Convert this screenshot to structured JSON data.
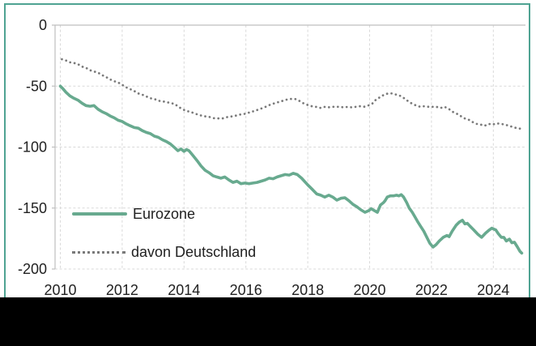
{
  "window": {
    "background_color": "#ffffff",
    "border_color": "#4fa392",
    "redaction_bar_color": "#000000"
  },
  "chart_data": {
    "type": "line",
    "title": "",
    "xlabel": "",
    "ylabel": "",
    "xlim": [
      2009.83,
      2025.05
    ],
    "ylim": [
      -200,
      0
    ],
    "grid": "dashed horizontal and vertical light-gray gridlines, solid zero line at top",
    "legend_position": "inside lower-left",
    "grid_color": "#d9d9d9",
    "axis_color": "#bfbfbf",
    "tick_text_color": "#212121",
    "x_ticks": [
      {
        "label": "2010",
        "value": 2010
      },
      {
        "label": "2012",
        "value": 2012
      },
      {
        "label": "2014",
        "value": 2014
      },
      {
        "label": "2016",
        "value": 2016
      },
      {
        "label": "2018",
        "value": 2018
      },
      {
        "label": "2020",
        "value": 2020
      },
      {
        "label": "2022",
        "value": 2022
      },
      {
        "label": "2024",
        "value": 2024
      }
    ],
    "y_ticks": [
      {
        "label": "0",
        "value": 0
      },
      {
        "label": "-50",
        "value": -50
      },
      {
        "label": "-100",
        "value": -100
      },
      {
        "label": "-150",
        "value": -150
      },
      {
        "label": "-200",
        "value": -200
      }
    ],
    "series": [
      {
        "name": "Eurozone",
        "style": "solid",
        "color": "#68aa8f",
        "stroke_width": 3.6,
        "points": [
          [
            2010.0,
            -50
          ],
          [
            2010.08,
            -52
          ],
          [
            2010.18,
            -55
          ],
          [
            2010.31,
            -58
          ],
          [
            2010.44,
            -60
          ],
          [
            2010.57,
            -61.5
          ],
          [
            2010.7,
            -64
          ],
          [
            2010.83,
            -66
          ],
          [
            2010.96,
            -66.5
          ],
          [
            2011.09,
            -66
          ],
          [
            2011.22,
            -69
          ],
          [
            2011.35,
            -71
          ],
          [
            2011.48,
            -72.5
          ],
          [
            2011.61,
            -74.5
          ],
          [
            2011.74,
            -76
          ],
          [
            2011.87,
            -78
          ],
          [
            2012.0,
            -79
          ],
          [
            2012.13,
            -81
          ],
          [
            2012.26,
            -82.5
          ],
          [
            2012.39,
            -84
          ],
          [
            2012.52,
            -84.5
          ],
          [
            2012.65,
            -86.5
          ],
          [
            2012.78,
            -88
          ],
          [
            2012.91,
            -89
          ],
          [
            2013.04,
            -91
          ],
          [
            2013.17,
            -92
          ],
          [
            2013.3,
            -94
          ],
          [
            2013.43,
            -95.5
          ],
          [
            2013.56,
            -97.5
          ],
          [
            2013.7,
            -100.5
          ],
          [
            2013.8,
            -103
          ],
          [
            2013.9,
            -101.5
          ],
          [
            2014.0,
            -103.5
          ],
          [
            2014.08,
            -102
          ],
          [
            2014.16,
            -103
          ],
          [
            2014.29,
            -107
          ],
          [
            2014.42,
            -111
          ],
          [
            2014.55,
            -115.5
          ],
          [
            2014.68,
            -119
          ],
          [
            2014.81,
            -121
          ],
          [
            2014.94,
            -123.5
          ],
          [
            2015.06,
            -124.5
          ],
          [
            2015.19,
            -125.5
          ],
          [
            2015.32,
            -124.5
          ],
          [
            2015.45,
            -127
          ],
          [
            2015.58,
            -129
          ],
          [
            2015.71,
            -128
          ],
          [
            2015.84,
            -130
          ],
          [
            2015.97,
            -129.5
          ],
          [
            2016.1,
            -130
          ],
          [
            2016.23,
            -129.5
          ],
          [
            2016.36,
            -129
          ],
          [
            2016.49,
            -128
          ],
          [
            2016.62,
            -127
          ],
          [
            2016.75,
            -125.5
          ],
          [
            2016.88,
            -126
          ],
          [
            2017.01,
            -124.5
          ],
          [
            2017.14,
            -123.5
          ],
          [
            2017.27,
            -122.5
          ],
          [
            2017.4,
            -123
          ],
          [
            2017.53,
            -121.5
          ],
          [
            2017.66,
            -122.5
          ],
          [
            2017.8,
            -125.5
          ],
          [
            2018.0,
            -131
          ],
          [
            2018.16,
            -135
          ],
          [
            2018.29,
            -138.5
          ],
          [
            2018.42,
            -139.5
          ],
          [
            2018.55,
            -141
          ],
          [
            2018.68,
            -139.5
          ],
          [
            2018.81,
            -141
          ],
          [
            2018.94,
            -143.5
          ],
          [
            2019.07,
            -142
          ],
          [
            2019.2,
            -141.5
          ],
          [
            2019.33,
            -144
          ],
          [
            2019.46,
            -147
          ],
          [
            2019.59,
            -149
          ],
          [
            2019.72,
            -151.5
          ],
          [
            2019.85,
            -153.5
          ],
          [
            2019.98,
            -152
          ],
          [
            2020.05,
            -150.5
          ],
          [
            2020.15,
            -152
          ],
          [
            2020.25,
            -153.5
          ],
          [
            2020.35,
            -147.5
          ],
          [
            2020.45,
            -145.5
          ],
          [
            2020.5,
            -144
          ],
          [
            2020.57,
            -141
          ],
          [
            2020.67,
            -140
          ],
          [
            2020.77,
            -140
          ],
          [
            2020.87,
            -139.5
          ],
          [
            2020.95,
            -140
          ],
          [
            2021.02,
            -139
          ],
          [
            2021.1,
            -141
          ],
          [
            2021.2,
            -145.5
          ],
          [
            2021.28,
            -150
          ],
          [
            2021.38,
            -153.5
          ],
          [
            2021.47,
            -157.5
          ],
          [
            2021.55,
            -161
          ],
          [
            2021.65,
            -165
          ],
          [
            2021.75,
            -169
          ],
          [
            2021.85,
            -174
          ],
          [
            2021.95,
            -179
          ],
          [
            2022.05,
            -182
          ],
          [
            2022.15,
            -180
          ],
          [
            2022.25,
            -177
          ],
          [
            2022.38,
            -174
          ],
          [
            2022.5,
            -172.5
          ],
          [
            2022.57,
            -173.5
          ],
          [
            2022.67,
            -169
          ],
          [
            2022.8,
            -164
          ],
          [
            2022.9,
            -161.5
          ],
          [
            2023.0,
            -160
          ],
          [
            2023.08,
            -163
          ],
          [
            2023.16,
            -162.5
          ],
          [
            2023.25,
            -165
          ],
          [
            2023.35,
            -167.5
          ],
          [
            2023.5,
            -171.5
          ],
          [
            2023.62,
            -174
          ],
          [
            2023.75,
            -170.5
          ],
          [
            2023.87,
            -168
          ],
          [
            2023.95,
            -166.5
          ],
          [
            2024.08,
            -168
          ],
          [
            2024.16,
            -171
          ],
          [
            2024.26,
            -174
          ],
          [
            2024.34,
            -174
          ],
          [
            2024.42,
            -177
          ],
          [
            2024.52,
            -175.5
          ],
          [
            2024.6,
            -178.5
          ],
          [
            2024.68,
            -178
          ],
          [
            2024.78,
            -182
          ],
          [
            2024.86,
            -185.5
          ],
          [
            2024.92,
            -187
          ]
        ]
      },
      {
        "name": "davon Deutschland",
        "style": "dotted",
        "color": "#7a7a7a",
        "stroke_width": 2.7,
        "points": [
          [
            2010.05,
            -28
          ],
          [
            2010.18,
            -29
          ],
          [
            2010.31,
            -30.5
          ],
          [
            2010.44,
            -31
          ],
          [
            2010.57,
            -32
          ],
          [
            2010.7,
            -34
          ],
          [
            2010.83,
            -35
          ],
          [
            2010.96,
            -37
          ],
          [
            2011.09,
            -38
          ],
          [
            2011.22,
            -39
          ],
          [
            2011.35,
            -41
          ],
          [
            2011.48,
            -42.5
          ],
          [
            2011.61,
            -44.5
          ],
          [
            2011.74,
            -46
          ],
          [
            2011.87,
            -47
          ],
          [
            2012.0,
            -49
          ],
          [
            2012.13,
            -51
          ],
          [
            2012.26,
            -52.5
          ],
          [
            2012.39,
            -54
          ],
          [
            2012.52,
            -56
          ],
          [
            2012.65,
            -57
          ],
          [
            2012.78,
            -58.5
          ],
          [
            2012.91,
            -60
          ],
          [
            2013.04,
            -60.5
          ],
          [
            2013.17,
            -62
          ],
          [
            2013.3,
            -62.5
          ],
          [
            2013.43,
            -63
          ],
          [
            2013.56,
            -64
          ],
          [
            2013.69,
            -64.5
          ],
          [
            2013.82,
            -67
          ],
          [
            2013.95,
            -69
          ],
          [
            2014.08,
            -70.5
          ],
          [
            2014.21,
            -71
          ],
          [
            2014.34,
            -72.5
          ],
          [
            2014.47,
            -73.5
          ],
          [
            2014.6,
            -74.5
          ],
          [
            2014.73,
            -75
          ],
          [
            2014.86,
            -75.5
          ],
          [
            2014.99,
            -76.5
          ],
          [
            2015.12,
            -76.5
          ],
          [
            2015.25,
            -76.5
          ],
          [
            2015.38,
            -75.5
          ],
          [
            2015.51,
            -75
          ],
          [
            2015.64,
            -74.5
          ],
          [
            2015.77,
            -73.5
          ],
          [
            2015.9,
            -73
          ],
          [
            2016.03,
            -72.5
          ],
          [
            2016.16,
            -71
          ],
          [
            2016.29,
            -70.5
          ],
          [
            2016.42,
            -69
          ],
          [
            2016.55,
            -68
          ],
          [
            2016.68,
            -66.5
          ],
          [
            2016.81,
            -65
          ],
          [
            2016.94,
            -64
          ],
          [
            2017.07,
            -63
          ],
          [
            2017.2,
            -62
          ],
          [
            2017.33,
            -61
          ],
          [
            2017.46,
            -60.5
          ],
          [
            2017.59,
            -60.5
          ],
          [
            2017.72,
            -62
          ],
          [
            2017.85,
            -64
          ],
          [
            2018.0,
            -65.5
          ],
          [
            2018.13,
            -66.5
          ],
          [
            2018.26,
            -67
          ],
          [
            2018.39,
            -68
          ],
          [
            2018.52,
            -67
          ],
          [
            2018.65,
            -67.5
          ],
          [
            2018.78,
            -67
          ],
          [
            2018.91,
            -67
          ],
          [
            2019.04,
            -67
          ],
          [
            2019.17,
            -67.5
          ],
          [
            2019.3,
            -67
          ],
          [
            2019.43,
            -67.5
          ],
          [
            2019.56,
            -67
          ],
          [
            2019.69,
            -66.5
          ],
          [
            2019.82,
            -67
          ],
          [
            2019.95,
            -66
          ],
          [
            2020.08,
            -64.5
          ],
          [
            2020.21,
            -61
          ],
          [
            2020.34,
            -59
          ],
          [
            2020.47,
            -57
          ],
          [
            2020.6,
            -56
          ],
          [
            2020.73,
            -56
          ],
          [
            2020.86,
            -57
          ],
          [
            2020.99,
            -58
          ],
          [
            2021.12,
            -60
          ],
          [
            2021.25,
            -62.5
          ],
          [
            2021.38,
            -64.5
          ],
          [
            2021.51,
            -66
          ],
          [
            2021.64,
            -67
          ],
          [
            2021.77,
            -66.5
          ],
          [
            2021.9,
            -67
          ],
          [
            2022.03,
            -67
          ],
          [
            2022.16,
            -67
          ],
          [
            2022.29,
            -68
          ],
          [
            2022.42,
            -67
          ],
          [
            2022.55,
            -68.5
          ],
          [
            2022.68,
            -71
          ],
          [
            2022.81,
            -72.5
          ],
          [
            2022.94,
            -74.5
          ],
          [
            2023.07,
            -76.5
          ],
          [
            2023.2,
            -77.5
          ],
          [
            2023.33,
            -79.5
          ],
          [
            2023.46,
            -81
          ],
          [
            2023.59,
            -81.5
          ],
          [
            2023.72,
            -82.5
          ],
          [
            2023.85,
            -81
          ],
          [
            2023.98,
            -81.5
          ],
          [
            2024.11,
            -80.5
          ],
          [
            2024.24,
            -81
          ],
          [
            2024.37,
            -81.5
          ],
          [
            2024.5,
            -82.5
          ],
          [
            2024.63,
            -83.5
          ],
          [
            2024.76,
            -84.5
          ],
          [
            2024.89,
            -85
          ]
        ]
      }
    ]
  },
  "legend": {
    "items": [
      {
        "label": "Eurozone"
      },
      {
        "label": "davon Deutschland"
      }
    ]
  }
}
